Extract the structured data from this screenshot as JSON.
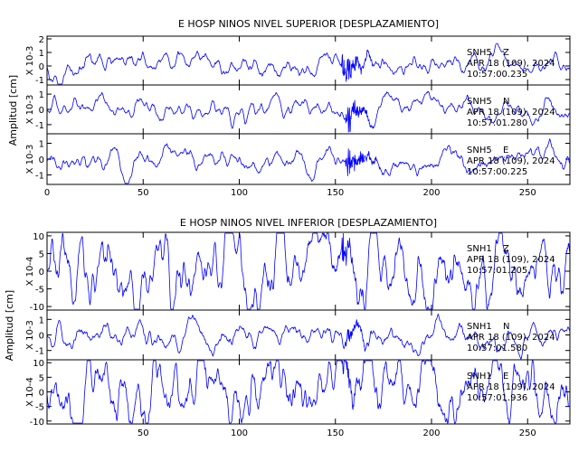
{
  "colors": {
    "trace": "#0000ff",
    "axes": "#000000",
    "background": "#ffffff"
  },
  "chart_data": [
    {
      "type": "line",
      "title": "E HOSP NINOS NIVEL SUPERIOR [DESPLAZAMIENTO]",
      "ylabel": "Amplitud [cm]",
      "xlim": [
        0,
        272
      ],
      "x_ticks": [
        0,
        50,
        100,
        150,
        200,
        250
      ],
      "x_tick_labels": [
        "0",
        "50",
        "100",
        "150",
        "200",
        "250"
      ],
      "grid": false,
      "panels": [
        {
          "scale_label": "X 10-3",
          "ylim": [
            -1.4,
            2.2
          ],
          "y_ticks": [
            -1,
            0,
            1,
            2
          ],
          "y_tick_labels": [
            "-1",
            "0",
            "1",
            "2"
          ],
          "station": "SNH5",
          "component": "Z",
          "date": "APR 18 (109), 2024",
          "time": "10:57:00.235",
          "trace_profile": {
            "noise_amplitude": 0.35,
            "event_start": 153,
            "event_end": 175,
            "event_peak": 1.9,
            "baseline": 0.0
          }
        },
        {
          "scale_label": "X 10-3",
          "ylim": [
            -1.6,
            1.6
          ],
          "y_ticks": [
            -1,
            0,
            1
          ],
          "y_tick_labels": [
            "-1",
            "0",
            "1"
          ],
          "station": "SNH5",
          "component": "N",
          "date": "APR 18 (109), 2024",
          "time": "10:57:01.280",
          "trace_profile": {
            "noise_amplitude": 0.3,
            "event_start": 155,
            "event_end": 178,
            "event_peak": 1.4,
            "baseline": 0.0
          }
        },
        {
          "scale_label": "X 10-3",
          "ylim": [
            -1.6,
            1.6
          ],
          "y_ticks": [
            -1,
            0,
            1
          ],
          "y_tick_labels": [
            "-1",
            "0",
            "1"
          ],
          "station": "SNH5",
          "component": "E",
          "date": "APR 18 (109), 2024",
          "time": "10:57:00.225",
          "trace_profile": {
            "noise_amplitude": 0.3,
            "event_start": 155,
            "event_end": 178,
            "event_peak": 1.5,
            "baseline": 0.0
          }
        }
      ]
    },
    {
      "type": "line",
      "title": "E HOSP NINOS NIVEL INFERIOR [DESPLAZAMIENTO]",
      "ylabel": "Amplitud [cm]",
      "xlim": [
        0,
        272
      ],
      "x_ticks": [
        50,
        100,
        150,
        200,
        250
      ],
      "x_tick_labels": [
        "50",
        "100",
        "150",
        "200",
        "250"
      ],
      "grid": false,
      "panels": [
        {
          "scale_label": "X 10-4",
          "ylim": [
            -11,
            11
          ],
          "y_ticks": [
            -10,
            -5,
            0,
            5,
            10
          ],
          "y_tick_labels": [
            "-10",
            "-5",
            "0",
            "5",
            "10"
          ],
          "station": "SNH1",
          "component": "Z",
          "date": "APR 18 (109), 2024",
          "time": "10:57:01.205",
          "trace_profile": {
            "noise_amplitude": 4.5,
            "event_start": 153,
            "event_end": 170,
            "event_peak": 6,
            "baseline": 0.0
          }
        },
        {
          "scale_label": "X 10-3",
          "ylim": [
            -1.6,
            1.6
          ],
          "y_ticks": [
            -1,
            0,
            1
          ],
          "y_tick_labels": [
            "-1",
            "0",
            "1"
          ],
          "station": "SNH1",
          "component": "N",
          "date": "APR 18 (109), 2024",
          "time": "10:57:01.580",
          "trace_profile": {
            "noise_amplitude": 0.35,
            "event_start": 155,
            "event_end": 175,
            "event_peak": 0.8,
            "baseline": 0.0
          }
        },
        {
          "scale_label": "X 10-4",
          "ylim": [
            -11,
            11
          ],
          "y_ticks": [
            -10,
            -5,
            0,
            5,
            10
          ],
          "y_tick_labels": [
            "-10",
            "-5",
            "0",
            "5",
            "10"
          ],
          "station": "SNH1",
          "component": "E",
          "date": "APR 18 (109), 2024",
          "time": "10:57:01.936",
          "trace_profile": {
            "noise_amplitude": 5,
            "event_start": 153,
            "event_end": 172,
            "event_peak": 7,
            "baseline": 0.0
          }
        }
      ]
    }
  ]
}
